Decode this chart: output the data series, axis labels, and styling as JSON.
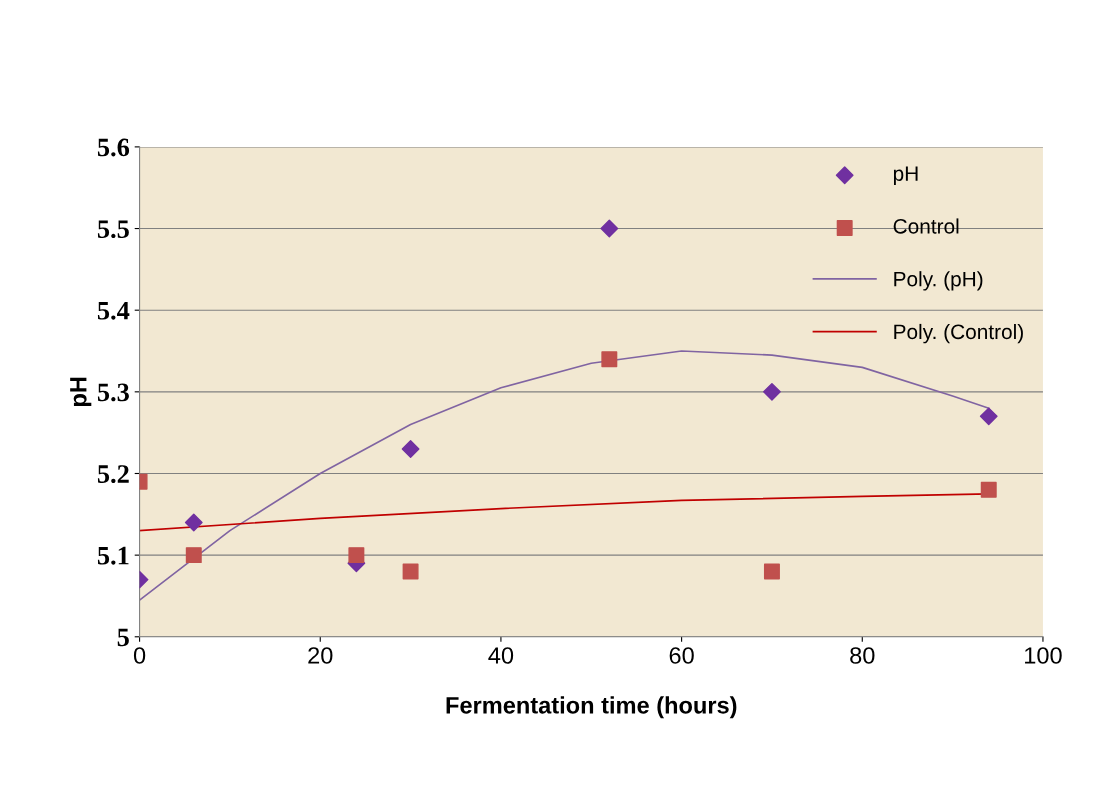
{
  "chart_data": {
    "type": "scatter",
    "xlabel": "Fermentation time (hours)",
    "ylabel": "pH",
    "xlim": [
      0,
      100
    ],
    "xticks": [
      0,
      20,
      40,
      60,
      80,
      100
    ],
    "ylim": [
      5,
      5.6
    ],
    "yticks": [
      5,
      5.1,
      5.2,
      5.3,
      5.4,
      5.5,
      5.6
    ],
    "grid": "y",
    "legend": "top right",
    "series": [
      {
        "name": "pH",
        "marker": "diamond",
        "color": "#7030a0",
        "x": [
          0,
          6,
          24,
          30,
          52,
          70,
          94
        ],
        "values": [
          5.07,
          5.14,
          5.09,
          5.23,
          5.5,
          5.3,
          5.27
        ]
      },
      {
        "name": "Control",
        "marker": "square",
        "color": "#c0504d",
        "x": [
          0,
          6,
          24,
          30,
          52,
          70,
          94
        ],
        "values": [
          5.19,
          5.1,
          5.1,
          5.08,
          5.34,
          5.08,
          5.18
        ]
      },
      {
        "name": "Poly. (pH)",
        "type": "line",
        "marker": "none",
        "color": "#8064a2",
        "x": [
          0,
          10,
          20,
          30,
          40,
          50,
          60,
          70,
          80,
          90,
          94
        ],
        "values": [
          5.045,
          5.13,
          5.2,
          5.26,
          5.305,
          5.335,
          5.35,
          5.345,
          5.33,
          5.295,
          5.28
        ]
      },
      {
        "name": "Poly. (Control)",
        "type": "line",
        "marker": "none",
        "color": "#c00000",
        "x": [
          0,
          20,
          40,
          60,
          80,
          94
        ],
        "values": [
          5.13,
          5.145,
          5.157,
          5.167,
          5.172,
          5.175
        ]
      }
    ]
  }
}
